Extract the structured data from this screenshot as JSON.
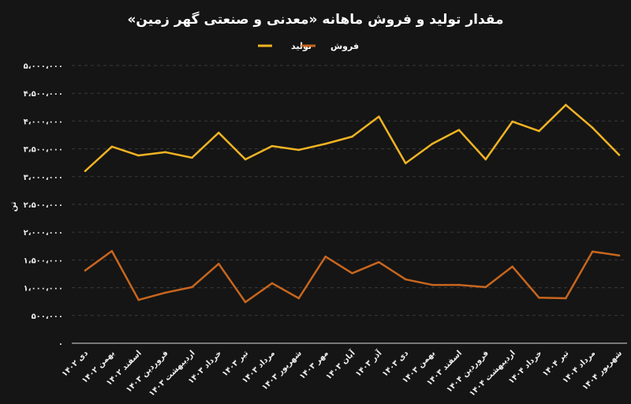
{
  "chart_data": {
    "type": "line",
    "title": "مقدار تولید و فروش ماهانه «معدنی و صنعتی گهر زمین»",
    "ylabel": "تن",
    "xlabel": "",
    "ylim": [
      0,
      5000000
    ],
    "grid": true,
    "legend_position": "top-center",
    "yticks": [
      0,
      500000,
      1000000,
      1500000,
      2000000,
      2500000,
      3000000,
      3500000,
      4000000,
      4500000,
      5000000
    ],
    "ytick_labels": [
      "۰",
      "۵۰۰،۰۰۰",
      "۱،۰۰۰،۰۰۰",
      "۱،۵۰۰،۰۰۰",
      "۲،۰۰۰،۰۰۰",
      "۲،۵۰۰،۰۰۰",
      "۳،۰۰۰،۰۰۰",
      "۳،۵۰۰،۰۰۰",
      "۴،۰۰۰،۰۰۰",
      "۴،۵۰۰،۰۰۰",
      "۵،۰۰۰،۰۰۰"
    ],
    "categories": [
      "دی ۱۴۰۲",
      "بهمن ۱۴۰۲",
      "اسفند ۱۴۰۲",
      "فروردین ۱۴۰۳",
      "اردیبهشت ۱۴۰۳",
      "خرداد ۱۴۰۳",
      "تیر ۱۴۰۳",
      "مرداد ۱۴۰۳",
      "شهریور ۱۴۰۳",
      "مهر ۱۴۰۳",
      "آبان ۱۴۰۳",
      "آذر ۱۴۰۳",
      "دی ۱۴۰۳",
      "بهمن ۱۴۰۳",
      "اسفند ۱۴۰۳",
      "فروردین ۱۴۰۴",
      "اردیبهشت ۱۴۰۴",
      "خرداد ۱۴۰۴",
      "تیر ۱۴۰۴",
      "مرداد ۱۴۰۴",
      "شهریور ۱۴۰۴"
    ],
    "series": [
      {
        "name": "تولید",
        "color": "#f0b323",
        "values": [
          3100000,
          3540000,
          3380000,
          3440000,
          3340000,
          3790000,
          3310000,
          3550000,
          3480000,
          3590000,
          3720000,
          4080000,
          3240000,
          3590000,
          3840000,
          3310000,
          3990000,
          3820000,
          4290000,
          3880000,
          3390000
        ]
      },
      {
        "name": "فروش",
        "color": "#c8661e",
        "values": [
          1310000,
          1660000,
          780000,
          910000,
          1010000,
          1430000,
          740000,
          1080000,
          810000,
          1560000,
          1260000,
          1460000,
          1150000,
          1050000,
          1050000,
          1010000,
          1380000,
          820000,
          810000,
          1650000,
          1580000
        ]
      }
    ]
  }
}
